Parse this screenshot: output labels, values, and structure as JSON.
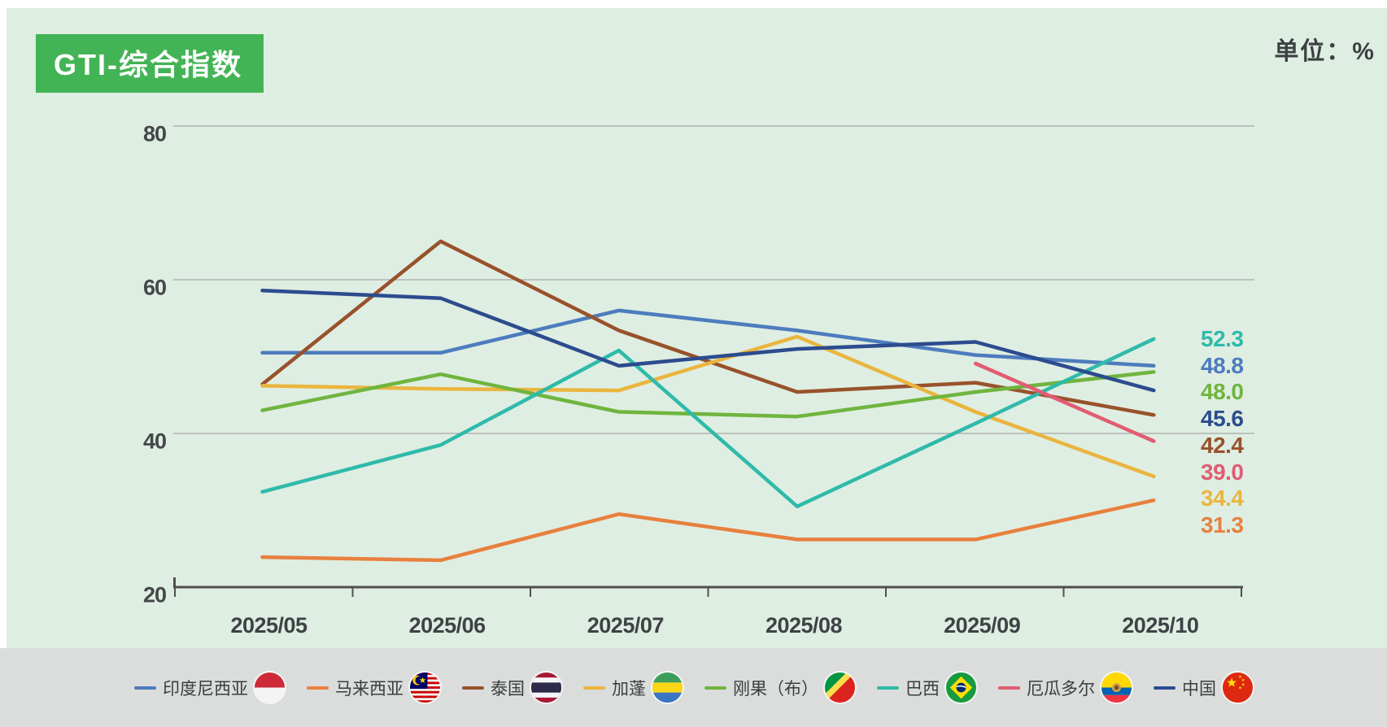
{
  "header": {
    "title": "GTI-综合指数",
    "unit_label": "单位：%"
  },
  "chart_data": {
    "type": "line",
    "title": "GTI-综合指数",
    "unit": "%",
    "categories": [
      "2025/05",
      "2025/06",
      "2025/07",
      "2025/08",
      "2025/09",
      "2025/10"
    ],
    "ylim": [
      20,
      80
    ],
    "yticks": [
      20,
      40,
      60,
      80
    ],
    "grid": true,
    "legend_position": "bottom",
    "series": [
      {
        "name": "印度尼西亚",
        "flag": "indonesia",
        "color": "#4D7CBE",
        "values": [
          50.5,
          50.5,
          56.0,
          53.4,
          50.2,
          48.8
        ],
        "end_label": "48.8"
      },
      {
        "name": "马来西亚",
        "flag": "malaysia",
        "color": "#E8803E",
        "values": [
          23.9,
          23.5,
          29.5,
          26.2,
          26.2,
          31.3
        ],
        "end_label": "31.3"
      },
      {
        "name": "泰国",
        "flag": "thailand",
        "color": "#98522B",
        "values": [
          46.4,
          65.0,
          53.4,
          45.4,
          46.6,
          42.4
        ],
        "end_label": "42.4"
      },
      {
        "name": "加蓬",
        "flag": "gabon",
        "color": "#EAB53E",
        "values": [
          46.2,
          45.8,
          45.6,
          52.6,
          42.8,
          34.4
        ],
        "end_label": "34.4"
      },
      {
        "name": "刚果（布）",
        "flag": "congo",
        "color": "#6FB53F",
        "values": [
          43.0,
          47.7,
          42.8,
          42.2,
          45.4,
          48.0
        ],
        "end_label": "48.0"
      },
      {
        "name": "巴西",
        "flag": "brazil",
        "color": "#2FBAAA",
        "values": [
          32.4,
          38.5,
          50.8,
          30.5,
          41.3,
          52.3
        ],
        "end_label": "52.3"
      },
      {
        "name": "厄瓜多尔",
        "flag": "ecuador",
        "color": "#E15C72",
        "values": [
          null,
          null,
          null,
          null,
          49.1,
          39.0
        ],
        "end_label": "39.0"
      },
      {
        "name": "中国",
        "flag": "china",
        "color": "#2B4C8E",
        "values": [
          58.6,
          57.6,
          48.8,
          51.0,
          51.9,
          45.6
        ],
        "end_label": "45.6"
      }
    ]
  }
}
